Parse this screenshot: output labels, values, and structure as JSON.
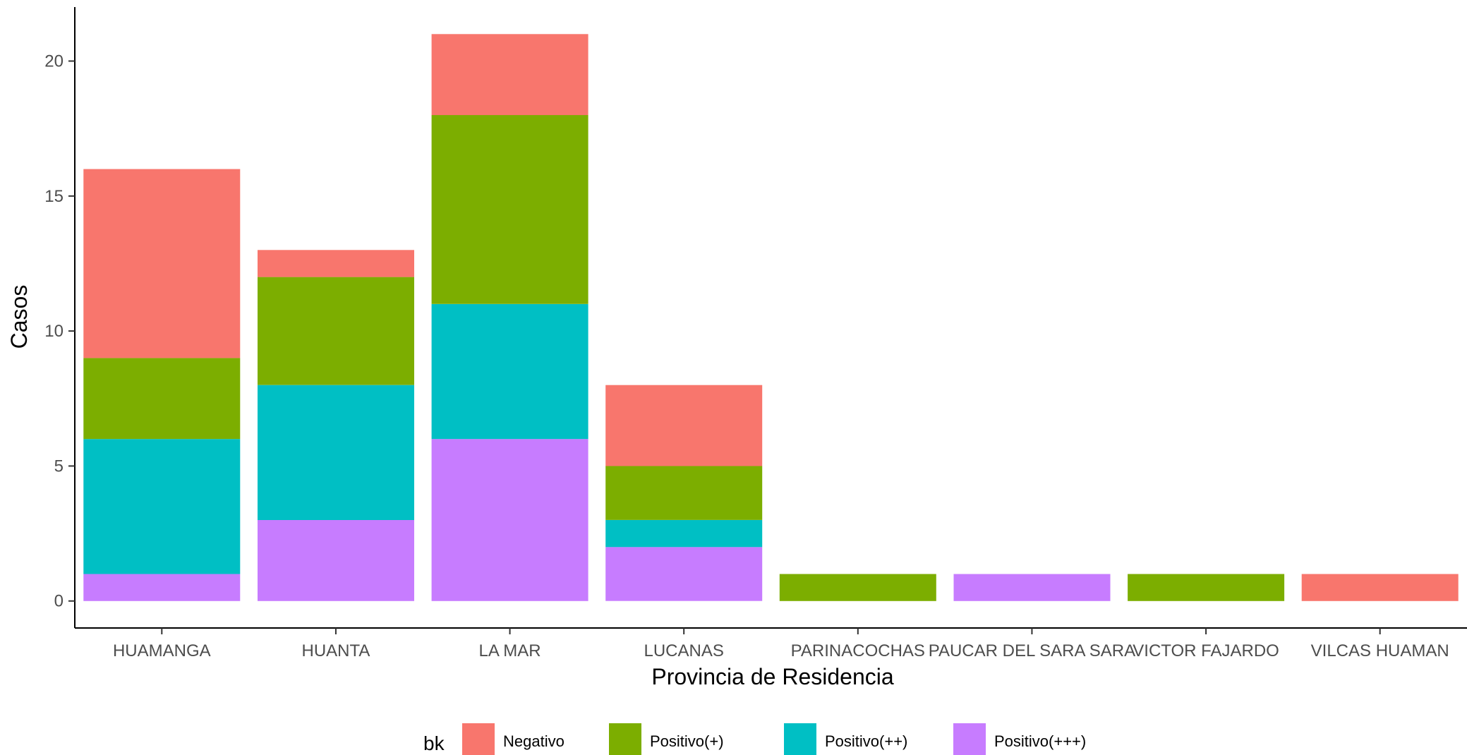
{
  "chart_data": {
    "type": "bar",
    "stacked": true,
    "xlabel": "Provincia de Residencia",
    "ylabel": "Casos",
    "ylim": [
      -1,
      22
    ],
    "yticks": [
      0,
      5,
      10,
      15,
      20
    ],
    "grid": false,
    "legend": {
      "title": "bk",
      "position": "bottom"
    },
    "categories": [
      "HUAMANGA",
      "HUANTA",
      "LA MAR",
      "LUCANAS",
      "PARINACOCHAS",
      "PAUCAR DEL SARA SARA",
      "VICTOR FAJARDO",
      "VILCAS HUAMAN"
    ],
    "series": [
      {
        "name": "Negativo",
        "color": "#F8766D",
        "values": [
          7,
          1,
          3,
          3,
          0,
          0,
          0,
          1
        ]
      },
      {
        "name": "Positivo(+)",
        "color": "#7CAE00",
        "values": [
          3,
          4,
          7,
          2,
          1,
          0,
          1,
          0
        ]
      },
      {
        "name": "Positivo(++)",
        "color": "#00BFC4",
        "values": [
          5,
          5,
          5,
          1,
          0,
          0,
          0,
          0
        ]
      },
      {
        "name": "Positivo(+++)",
        "color": "#C77CFF",
        "values": [
          1,
          3,
          6,
          2,
          0,
          1,
          0,
          0
        ]
      }
    ]
  }
}
